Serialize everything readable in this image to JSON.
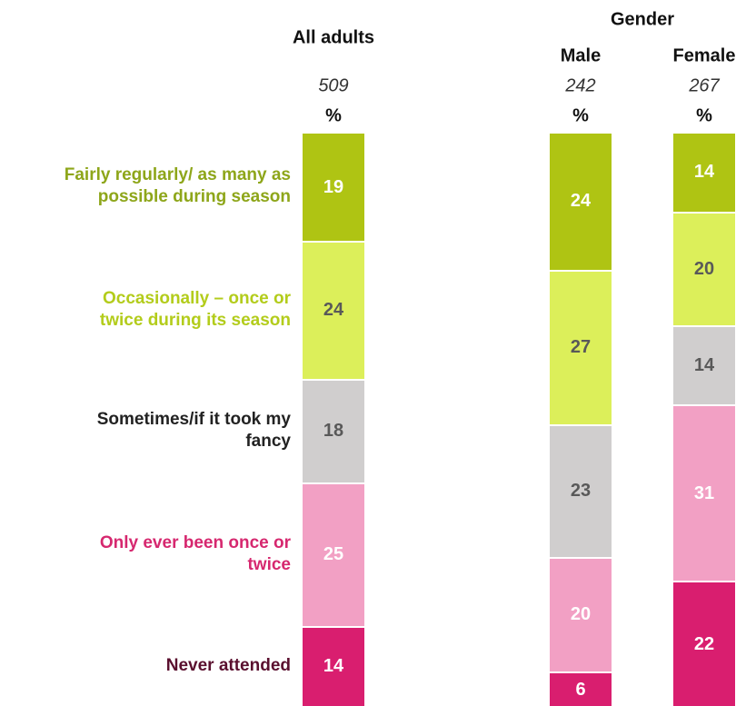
{
  "chart_data": {
    "type": "stacked_bar",
    "group_label": "Gender",
    "categories": [
      "All adults",
      "Male",
      "Female"
    ],
    "bases": [
      "509",
      "242",
      "267"
    ],
    "unit": "%",
    "series": [
      {
        "name": "Fairly regularly/ as many as possible during season",
        "color": "#afc413",
        "label_color": "#8ea61a",
        "value_color": "#ffffff",
        "values": [
          19,
          24,
          14
        ]
      },
      {
        "name": "Occasionally – once or twice during its season",
        "color": "#dcef5a",
        "label_color": "#b3cc1b",
        "value_color": "#595959",
        "values": [
          24,
          27,
          20
        ]
      },
      {
        "name": "Sometimes/if it took my fancy",
        "color": "#d0cece",
        "label_color": "#222222",
        "value_color": "#595959",
        "values": [
          18,
          23,
          14
        ]
      },
      {
        "name": "Only ever been once or twice",
        "color": "#f2a0c4",
        "label_color": "#d6286f",
        "value_color": "#ffffff",
        "values": [
          25,
          20,
          31
        ]
      },
      {
        "name": "Never attended",
        "color": "#d91e6f",
        "label_color": "#5a0f2e",
        "value_color": "#ffffff",
        "values": [
          14,
          6,
          22
        ]
      }
    ]
  }
}
